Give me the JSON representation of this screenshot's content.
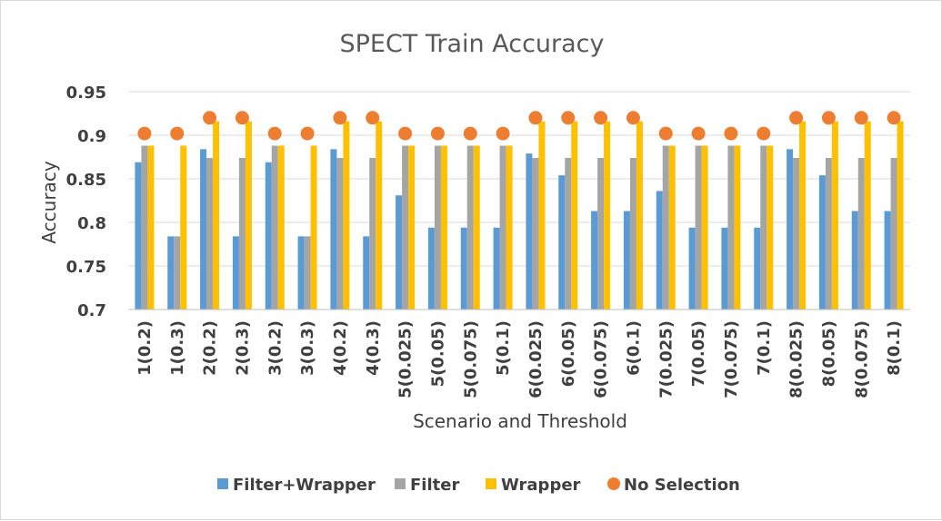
{
  "chart_data": {
    "type": "bar",
    "title": "SPECT Train Accuracy",
    "xlabel": "Scenario and Threshold",
    "ylabel": "Accuracy",
    "ylim": [
      0.7,
      0.95
    ],
    "yticks": [
      "0.7",
      "0.75",
      "0.8",
      "0.85",
      "0.9",
      "0.95"
    ],
    "grid": "horizontal",
    "legend_position": "bottom",
    "categories": [
      "1(0.2)",
      "1(0.3)",
      "2(0.2)",
      "2(0.3)",
      "3(0.2)",
      "3(0.3)",
      "4(0.2)",
      "4(0.3)",
      "5(0.025)",
      "5(0.05)",
      "5(0.075)",
      "5(0.1)",
      "6(0.025)",
      "6(0.05)",
      "6(0.075)",
      "6(0.1)",
      "7(0.025)",
      "7(0.05)",
      "7(0.075)",
      "7(0.1)",
      "8(0.025)",
      "8(0.05)",
      "8(0.075)",
      "8(0.1)"
    ],
    "series": [
      {
        "name": "Filter+Wrapper",
        "kind": "bar",
        "color": "#5b9bd5",
        "values": [
          0.869,
          0.784,
          0.884,
          0.784,
          0.869,
          0.784,
          0.884,
          0.784,
          0.831,
          0.794,
          0.794,
          0.794,
          0.879,
          0.854,
          0.813,
          0.813,
          0.836,
          0.794,
          0.794,
          0.794,
          0.884,
          0.854,
          0.813,
          0.813
        ]
      },
      {
        "name": "Filter",
        "kind": "bar",
        "color": "#a5a5a5",
        "values": [
          0.888,
          0.784,
          0.874,
          0.874,
          0.888,
          0.784,
          0.874,
          0.874,
          0.888,
          0.888,
          0.888,
          0.888,
          0.874,
          0.874,
          0.874,
          0.874,
          0.888,
          0.888,
          0.888,
          0.888,
          0.874,
          0.874,
          0.874,
          0.874
        ]
      },
      {
        "name": "Wrapper",
        "kind": "bar",
        "color": "#ffc000",
        "values": [
          0.888,
          0.888,
          0.916,
          0.916,
          0.888,
          0.888,
          0.916,
          0.916,
          0.888,
          0.888,
          0.888,
          0.888,
          0.916,
          0.916,
          0.916,
          0.916,
          0.888,
          0.888,
          0.888,
          0.888,
          0.916,
          0.916,
          0.916,
          0.916
        ]
      },
      {
        "name": "No Selection",
        "kind": "marker",
        "color": "#ed7d31",
        "values": [
          0.902,
          0.902,
          0.92,
          0.92,
          0.902,
          0.902,
          0.92,
          0.92,
          0.902,
          0.902,
          0.902,
          0.902,
          0.92,
          0.92,
          0.92,
          0.92,
          0.902,
          0.902,
          0.902,
          0.902,
          0.92,
          0.92,
          0.92,
          0.92
        ]
      }
    ]
  }
}
